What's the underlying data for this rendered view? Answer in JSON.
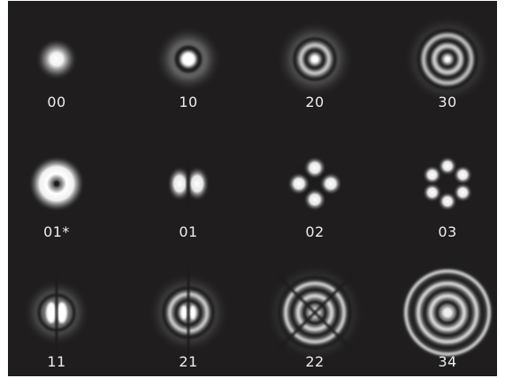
{
  "modes": {
    "m00": "00",
    "m10": "10",
    "m20": "20",
    "m30": "30",
    "m01s": "01*",
    "m01": "01",
    "m02": "02",
    "m03": "03",
    "m11": "11",
    "m21": "21",
    "m22": "22",
    "m34": "34"
  }
}
